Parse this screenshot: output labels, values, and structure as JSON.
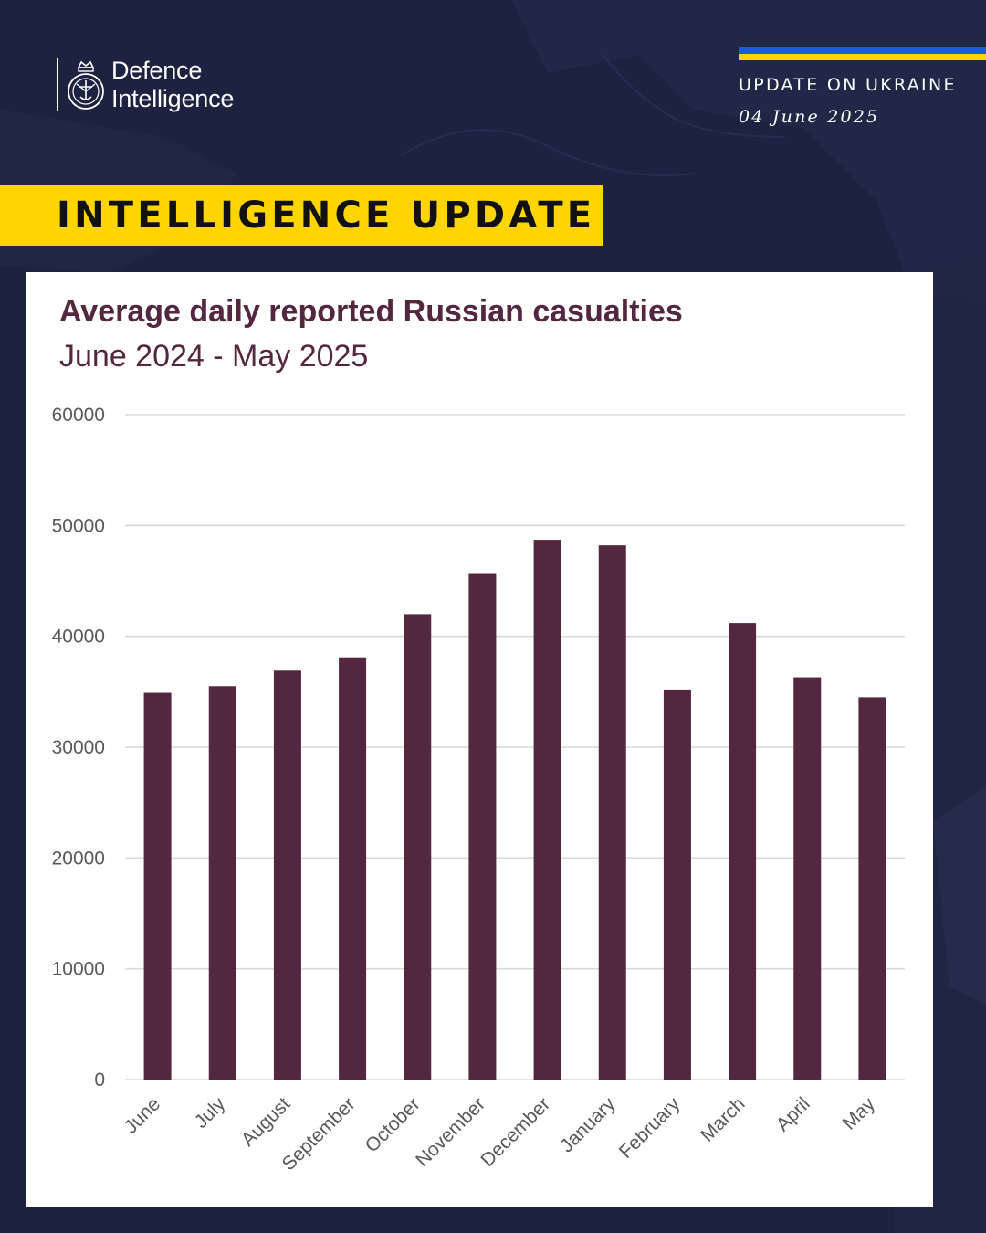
{
  "brand": {
    "name_line1": "Defence",
    "name_line2": "Intelligence"
  },
  "header": {
    "label": "UPDATE ON UKRAINE",
    "date": "04 June 2025"
  },
  "banner": {
    "text": "INTELLIGENCE UPDATE"
  },
  "colors": {
    "background": "#1d2240",
    "banner": "#ffd500",
    "flag_blue": "#1f5bd1",
    "flag_yellow": "#ffd500",
    "bar": "#52273f",
    "title": "#52273f",
    "gridline": "#d9d9d9",
    "tick_text": "#595959"
  },
  "chart_data": {
    "type": "bar",
    "title": "Average daily reported Russian casualties",
    "subtitle": "June 2024 - May 2025",
    "xlabel": "",
    "ylabel": "",
    "ylim": [
      0,
      60000
    ],
    "yticks": [
      "0",
      "10000",
      "20000",
      "30000",
      "40000",
      "50000",
      "60000"
    ],
    "grid": true,
    "categories": [
      "June",
      "July",
      "August",
      "September",
      "October",
      "November",
      "December",
      "January",
      "February",
      "March",
      "April",
      "May"
    ],
    "values": [
      34900,
      35500,
      36900,
      38100,
      42000,
      45700,
      48700,
      48200,
      35200,
      41200,
      36300,
      34500
    ]
  }
}
